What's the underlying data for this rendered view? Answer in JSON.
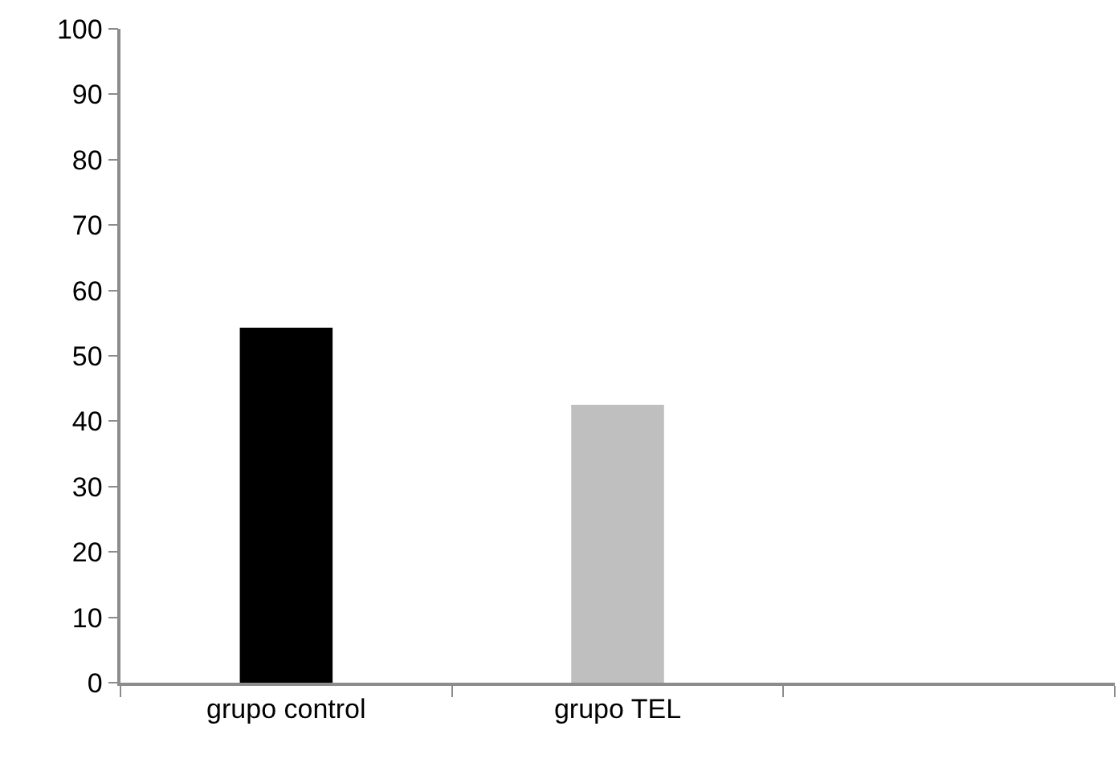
{
  "chart_data": {
    "type": "bar",
    "categories": [
      "grupo control",
      "grupo TEL",
      null
    ],
    "values": [
      54.3,
      42.5,
      null
    ],
    "colors": [
      "#000000",
      "#bfbfbf",
      "#bfbfbf"
    ],
    "ylim": [
      0,
      100
    ],
    "yticks": [
      0,
      10,
      20,
      30,
      40,
      50,
      60,
      70,
      80,
      90,
      100
    ]
  }
}
